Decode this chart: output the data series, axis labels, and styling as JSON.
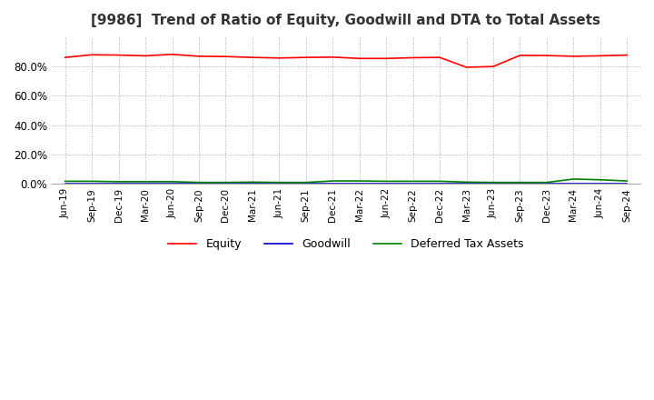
{
  "title": "[9986]  Trend of Ratio of Equity, Goodwill and DTA to Total Assets",
  "title_fontsize": 11,
  "background_color": "#ffffff",
  "grid_color": "#aaaaaa",
  "x_labels": [
    "Jun-19",
    "Sep-19",
    "Dec-19",
    "Mar-20",
    "Jun-20",
    "Sep-20",
    "Dec-20",
    "Mar-21",
    "Jun-21",
    "Sep-21",
    "Dec-21",
    "Mar-22",
    "Jun-22",
    "Sep-22",
    "Dec-22",
    "Mar-23",
    "Jun-23",
    "Sep-23",
    "Dec-23",
    "Mar-24",
    "Jun-24",
    "Sep-24"
  ],
  "equity": [
    0.862,
    0.88,
    0.878,
    0.873,
    0.883,
    0.87,
    0.868,
    0.862,
    0.858,
    0.862,
    0.864,
    0.855,
    0.855,
    0.86,
    0.862,
    0.795,
    0.8,
    0.876,
    0.875,
    0.87,
    0.873,
    0.878
  ],
  "goodwill": [
    0.0,
    0.0,
    0.0,
    0.0,
    0.0,
    0.0,
    0.0,
    0.0,
    0.0,
    0.0,
    0.0,
    0.0,
    0.0,
    0.0,
    0.0,
    0.0,
    0.0,
    0.0,
    0.0,
    0.0,
    0.0,
    0.0
  ],
  "dta": [
    0.018,
    0.018,
    0.015,
    0.015,
    0.015,
    0.01,
    0.01,
    0.012,
    0.01,
    0.01,
    0.02,
    0.02,
    0.018,
    0.018,
    0.018,
    0.012,
    0.01,
    0.01,
    0.01,
    0.033,
    0.028,
    0.02
  ],
  "equity_color": "#ff0000",
  "goodwill_color": "#0000cc",
  "dta_color": "#008000",
  "line_width": 1.2,
  "ylim": [
    0.0,
    1.0
  ],
  "yticks": [
    0.0,
    0.2,
    0.4,
    0.6,
    0.8
  ]
}
